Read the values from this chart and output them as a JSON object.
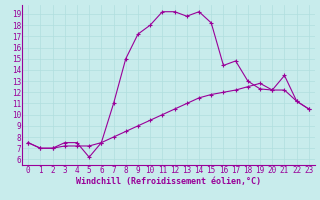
{
  "xlabel": "Windchill (Refroidissement éolien,°C)",
  "bg_color": "#c8ecec",
  "line_color": "#990099",
  "grid_color": "#b0dede",
  "x_ticks": [
    0,
    1,
    2,
    3,
    4,
    5,
    6,
    7,
    8,
    9,
    10,
    11,
    12,
    13,
    14,
    15,
    16,
    17,
    18,
    19,
    20,
    21,
    22,
    23
  ],
  "y_ticks": [
    6,
    7,
    8,
    9,
    10,
    11,
    12,
    13,
    14,
    15,
    16,
    17,
    18,
    19
  ],
  "ylim": [
    5.5,
    19.8
  ],
  "xlim": [
    -0.5,
    23.5
  ],
  "line1_x": [
    0,
    1,
    2,
    3,
    4,
    5,
    6,
    7,
    8,
    9,
    10,
    11,
    12,
    13,
    14,
    15,
    16,
    17,
    18,
    19,
    20,
    21,
    22,
    23
  ],
  "line1_y": [
    7.5,
    7.0,
    7.0,
    7.5,
    7.5,
    6.2,
    7.5,
    11.0,
    15.0,
    17.2,
    18.0,
    19.2,
    19.2,
    18.8,
    19.2,
    18.2,
    14.4,
    14.8,
    13.0,
    12.3,
    12.2,
    13.5,
    11.2,
    10.5
  ],
  "line2_x": [
    0,
    1,
    2,
    3,
    4,
    5,
    6,
    7,
    8,
    9,
    10,
    11,
    12,
    13,
    14,
    15,
    16,
    17,
    18,
    19,
    20,
    21,
    22,
    23
  ],
  "line2_y": [
    7.5,
    7.0,
    7.0,
    7.2,
    7.2,
    7.2,
    7.5,
    8.0,
    8.5,
    9.0,
    9.5,
    10.0,
    10.5,
    11.0,
    11.5,
    11.8,
    12.0,
    12.2,
    12.5,
    12.8,
    12.2,
    12.2,
    11.2,
    10.5
  ],
  "tick_fontsize": 5.5,
  "xlabel_fontsize": 6.0,
  "lw": 0.8,
  "marker_size": 3.0
}
